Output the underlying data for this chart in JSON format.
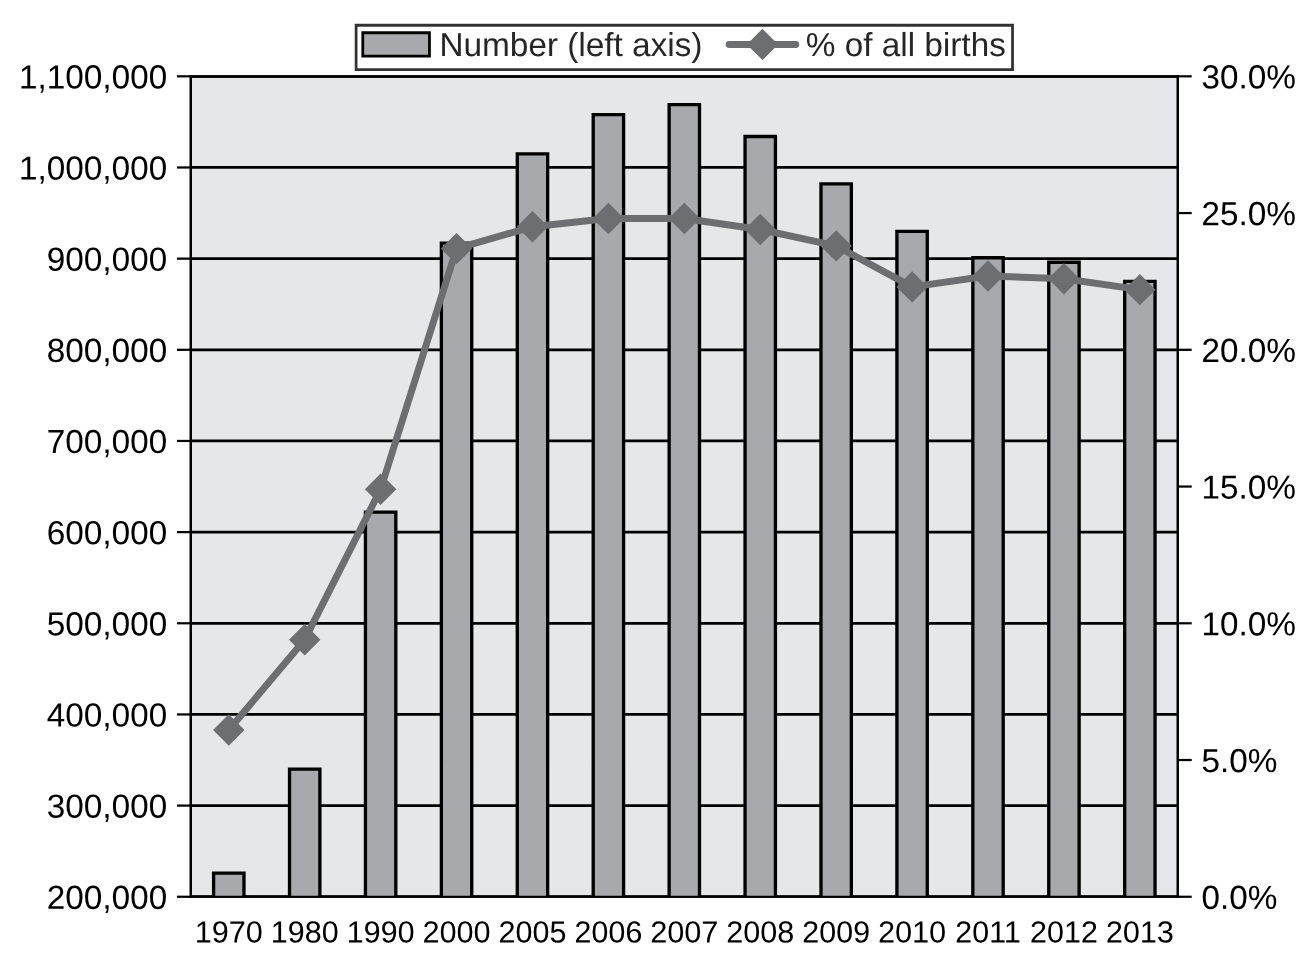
{
  "chart_data": {
    "type": "bar",
    "categories": [
      "1970",
      "1980",
      "1990",
      "2000",
      "2005",
      "2006",
      "2007",
      "2008",
      "2009",
      "2010",
      "2011",
      "2012",
      "2013"
    ],
    "series": [
      {
        "name": "Number (left axis)",
        "color": "#a8a9ad",
        "values": [
          226000,
          340000,
          622000,
          917000,
          1015000,
          1058000,
          1069000,
          1034000,
          982000,
          930000,
          901000,
          896000,
          875000
        ]
      },
      {
        "name": "% of all births",
        "type": "line",
        "axis": "y2",
        "color": "#6d6e71",
        "marker": "diamond",
        "values": [
          6.1,
          9.4,
          14.9,
          23.7,
          24.5,
          24.8,
          24.8,
          24.4,
          23.8,
          22.3,
          22.7,
          22.6,
          22.2
        ]
      }
    ],
    "ylim": [
      200000,
      1100000
    ],
    "yticks": [
      {
        "value": 200000,
        "label": "200,000"
      },
      {
        "value": 300000,
        "label": "300,000"
      },
      {
        "value": 400000,
        "label": "400,000"
      },
      {
        "value": 500000,
        "label": "500,000"
      },
      {
        "value": 600000,
        "label": "600,000"
      },
      {
        "value": 700000,
        "label": "700,000"
      },
      {
        "value": 800000,
        "label": "800,000"
      },
      {
        "value": 900000,
        "label": "900,000"
      },
      {
        "value": 1000000,
        "label": "1,000,000"
      },
      {
        "value": 1100000,
        "label": "1,100,000"
      }
    ],
    "y2lim": [
      0,
      30
    ],
    "y2ticks": [
      {
        "value": 0,
        "label": "0.0%"
      },
      {
        "value": 5,
        "label": "5.0%"
      },
      {
        "value": 10,
        "label": "10.0%"
      },
      {
        "value": 15,
        "label": "15.0%"
      },
      {
        "value": 20,
        "label": "20.0%"
      },
      {
        "value": 25,
        "label": "25.0%"
      },
      {
        "value": 30,
        "label": "30.0%"
      }
    ],
    "grid": "y",
    "legend": "top"
  }
}
